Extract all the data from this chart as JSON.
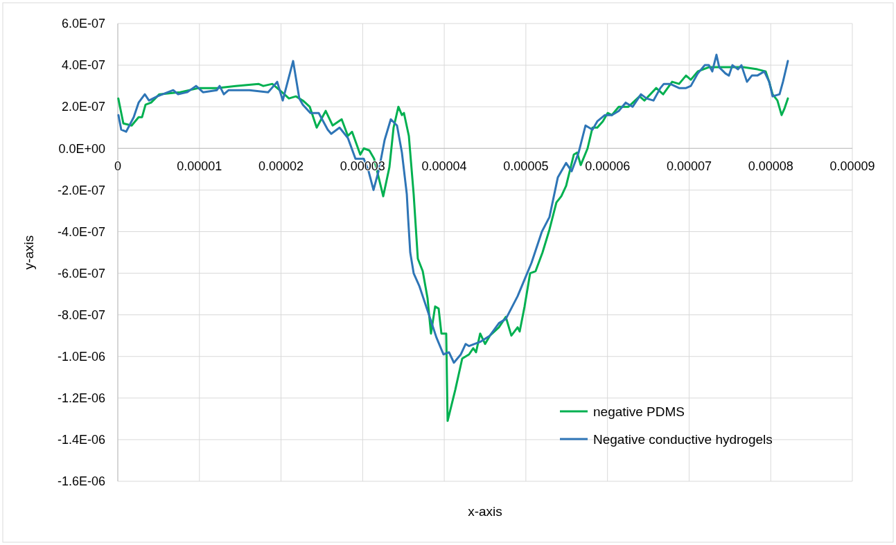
{
  "chart_data": {
    "type": "line",
    "xlabel": "x-axis",
    "ylabel": "y-axis",
    "xlim": [
      0,
      9e-05
    ],
    "ylim": [
      -1.6e-06,
      6e-07
    ],
    "xticks": [
      {
        "value": 0,
        "label": "0"
      },
      {
        "value": 1e-05,
        "label": "0.00001"
      },
      {
        "value": 2e-05,
        "label": "0.00002"
      },
      {
        "value": 3e-05,
        "label": "0.00003"
      },
      {
        "value": 4e-05,
        "label": "0.00004"
      },
      {
        "value": 5e-05,
        "label": "0.00005"
      },
      {
        "value": 6e-05,
        "label": "0.00006"
      },
      {
        "value": 7e-05,
        "label": "0.00007"
      },
      {
        "value": 8e-05,
        "label": "0.00008"
      },
      {
        "value": 9e-05,
        "label": "0.00009"
      }
    ],
    "yticks": [
      {
        "value": 6e-07,
        "label": "6.0E-07"
      },
      {
        "value": 4e-07,
        "label": "4.0E-07"
      },
      {
        "value": 2e-07,
        "label": "2.0E-07"
      },
      {
        "value": 0,
        "label": "0.0E+00"
      },
      {
        "value": -2e-07,
        "label": "-2.0E-07"
      },
      {
        "value": -4e-07,
        "label": "-4.0E-07"
      },
      {
        "value": -6e-07,
        "label": "-6.0E-07"
      },
      {
        "value": -8e-07,
        "label": "-8.0E-07"
      },
      {
        "value": -1e-06,
        "label": "-1.0E-06"
      },
      {
        "value": -1.2e-06,
        "label": "-1.2E-06"
      },
      {
        "value": -1.4e-06,
        "label": "-1.4E-06"
      },
      {
        "value": -1.6e-06,
        "label": "-1.6E-06"
      }
    ],
    "grid": true,
    "legend": "bottom right",
    "marker": "none",
    "line_style": "solid",
    "series": [
      {
        "name": "negative PDMS",
        "color": "#00b050",
        "x": [
          6e-08,
          6.8e-07,
          1.7e-06,
          2.55e-06,
          2.97e-06,
          3.4e-06,
          4.08e-06,
          5.09e-06,
          7.64e-06,
          9.93e-06,
          1.214e-05,
          1.443e-05,
          1.723e-05,
          1.783e-05,
          1.893e-05,
          2.012e-05,
          2.097e-05,
          2.182e-05,
          2.267e-05,
          2.352e-05,
          2.437e-05,
          2.547e-05,
          2.632e-05,
          2.743e-05,
          2.819e-05,
          2.87e-05,
          2.971e-05,
          3.014e-05,
          3.082e-05,
          3.141e-05,
          3.252e-05,
          3.328e-05,
          3.379e-05,
          3.438e-05,
          3.481e-05,
          3.506e-05,
          3.566e-05,
          3.625e-05,
          3.676e-05,
          3.736e-05,
          3.795e-05,
          3.837e-05,
          3.888e-05,
          3.931e-05,
          3.965e-05,
          4.024e-05,
          4.041e-05,
          4.135e-05,
          4.22e-05,
          4.304e-05,
          4.355e-05,
          4.389e-05,
          4.44e-05,
          4.5e-05,
          4.559e-05,
          4.67e-05,
          4.754e-05,
          4.822e-05,
          4.899e-05,
          4.924e-05,
          4.984e-05,
          5.052e-05,
          5.119e-05,
          5.204e-05,
          5.289e-05,
          5.374e-05,
          5.434e-05,
          5.493e-05,
          5.587e-05,
          5.629e-05,
          5.672e-05,
          5.756e-05,
          5.816e-05,
          5.875e-05,
          5.943e-05,
          6.002e-05,
          6.053e-05,
          6.138e-05,
          6.257e-05,
          6.393e-05,
          6.452e-05,
          6.597e-05,
          6.682e-05,
          6.792e-05,
          6.877e-05,
          6.962e-05,
          7.021e-05,
          7.106e-05,
          7.242e-05,
          7.386e-05,
          7.666e-05,
          7.836e-05,
          7.938e-05,
          7.981e-05,
          8.023e-05,
          8.082e-05,
          8.133e-05,
          8.167e-05,
          8.21e-05
        ],
        "values": [
          2.4e-07,
          1.2e-07,
          1.1e-07,
          1.5e-07,
          1.5e-07,
          2.1e-07,
          2.2e-07,
          2.6e-07,
          2.7e-07,
          2.9e-07,
          2.9e-07,
          3e-07,
          3.1e-07,
          3e-07,
          3.1e-07,
          2.7e-07,
          2.4e-07,
          2.5e-07,
          2.3e-07,
          2e-07,
          1e-07,
          1.8e-07,
          1.1e-07,
          1.4e-07,
          6e-08,
          8e-08,
          -3e-08,
          0,
          -1e-08,
          -5e-08,
          -2.3e-07,
          -9e-08,
          1e-07,
          2e-07,
          1.6e-07,
          1.7e-07,
          6e-08,
          -2.2e-07,
          -5.3e-07,
          -5.9e-07,
          -7.2e-07,
          -8.9e-07,
          -7.6e-07,
          -7.7e-07,
          -8.9e-07,
          -8.9e-07,
          -1.31e-06,
          -1.16e-06,
          -1.01e-06,
          -9.9e-07,
          -9.6e-07,
          -9.8e-07,
          -8.9e-07,
          -9.4e-07,
          -9e-07,
          -8.6e-07,
          -8.1e-07,
          -9e-07,
          -8.6e-07,
          -8.8e-07,
          -7.6e-07,
          -6e-07,
          -5.9e-07,
          -5e-07,
          -3.9e-07,
          -2.6e-07,
          -2.3e-07,
          -1.8e-07,
          -3e-08,
          -2e-08,
          -8e-08,
          0,
          1e-07,
          1e-07,
          1.3e-07,
          1.7e-07,
          1.6e-07,
          2e-07,
          2e-07,
          2.5e-07,
          2.3e-07,
          2.9e-07,
          2.6e-07,
          3.2e-07,
          3.1e-07,
          3.5e-07,
          3.3e-07,
          3.7e-07,
          3.9e-07,
          3.9e-07,
          3.9e-07,
          3.8e-07,
          3.7e-07,
          3.2e-07,
          2.6e-07,
          2.3e-07,
          1.6e-07,
          1.9e-07,
          2.4e-07
        ]
      },
      {
        "name": "Negative conductive hydrogels",
        "color": "#2e75b6",
        "x": [
          8e-08,
          4.2e-07,
          1.02e-06,
          1.95e-06,
          2.55e-06,
          3.31e-06,
          3.82e-06,
          4.84e-06,
          6.79e-06,
          7.39e-06,
          8.49e-06,
          9.59e-06,
          1.044e-05,
          1.214e-05,
          1.248e-05,
          1.299e-05,
          1.358e-05,
          1.613e-05,
          1.842e-05,
          1.953e-05,
          2.021e-05,
          2.148e-05,
          2.224e-05,
          2.267e-05,
          2.36e-05,
          2.462e-05,
          2.572e-05,
          2.615e-05,
          2.717e-05,
          2.819e-05,
          2.912e-05,
          3.014e-05,
          3.073e-05,
          3.133e-05,
          3.201e-05,
          3.269e-05,
          3.345e-05,
          3.421e-05,
          3.481e-05,
          3.541e-05,
          3.558e-05,
          3.583e-05,
          3.625e-05,
          3.693e-05,
          3.821e-05,
          3.905e-05,
          3.99e-05,
          4.058e-05,
          4.118e-05,
          4.203e-05,
          4.262e-05,
          4.304e-05,
          4.44e-05,
          4.559e-05,
          4.67e-05,
          4.754e-05,
          4.899e-05,
          5.069e-05,
          5.196e-05,
          5.289e-05,
          5.391e-05,
          5.493e-05,
          5.561e-05,
          5.646e-05,
          5.731e-05,
          5.816e-05,
          5.875e-05,
          5.968e-05,
          6.053e-05,
          6.138e-05,
          6.223e-05,
          6.308e-05,
          6.41e-05,
          6.478e-05,
          6.563e-05,
          6.648e-05,
          6.69e-05,
          6.767e-05,
          6.877e-05,
          6.962e-05,
          7.021e-05,
          7.106e-05,
          7.191e-05,
          7.242e-05,
          7.284e-05,
          7.335e-05,
          7.369e-05,
          7.446e-05,
          7.488e-05,
          7.531e-05,
          7.599e-05,
          7.641e-05,
          7.666e-05,
          7.709e-05,
          7.769e-05,
          7.836e-05,
          7.921e-05,
          7.981e-05,
          8.023e-05,
          8.108e-05,
          8.15e-05,
          8.21e-05
        ],
        "values": [
          1.6e-07,
          9e-08,
          8e-08,
          1.5e-07,
          2.2e-07,
          2.6e-07,
          2.3e-07,
          2.5e-07,
          2.8e-07,
          2.6e-07,
          2.7e-07,
          3e-07,
          2.7e-07,
          2.8e-07,
          3e-07,
          2.6e-07,
          2.8e-07,
          2.8e-07,
          2.7e-07,
          3.2e-07,
          2.3e-07,
          4.2e-07,
          2.4e-07,
          2.1e-07,
          1.7e-07,
          1.7e-07,
          9e-08,
          7e-08,
          1e-07,
          5e-08,
          -5e-08,
          -5e-08,
          -1.1e-07,
          -2e-07,
          -1e-07,
          4e-08,
          1.4e-07,
          1.1e-07,
          -2e-08,
          -2.2e-07,
          -3.4e-07,
          -5e-07,
          -6e-07,
          -6.6e-07,
          -8.1e-07,
          -9.1e-07,
          -9.9e-07,
          -9.8e-07,
          -1.03e-06,
          -9.9e-07,
          -9.4e-07,
          -9.5e-07,
          -9.3e-07,
          -9e-07,
          -8.4e-07,
          -8.2e-07,
          -7.1e-07,
          -5.5e-07,
          -4e-07,
          -3.3e-07,
          -1.4e-07,
          -7e-08,
          -1.1e-07,
          -2e-08,
          1.1e-07,
          9e-08,
          1.3e-07,
          1.6e-07,
          1.6e-07,
          1.8e-07,
          2.2e-07,
          2e-07,
          2.6e-07,
          2.4e-07,
          2.3e-07,
          2.9e-07,
          3.1e-07,
          3.1e-07,
          2.9e-07,
          2.9e-07,
          3e-07,
          3.6e-07,
          4e-07,
          4e-07,
          3.7e-07,
          4.5e-07,
          3.9e-07,
          3.6e-07,
          3.5e-07,
          4e-07,
          3.8e-07,
          4e-07,
          3.7e-07,
          3.2e-07,
          3.5e-07,
          3.5e-07,
          3.7e-07,
          3.2e-07,
          2.5e-07,
          2.6e-07,
          3.2e-07,
          4.2e-07
        ]
      }
    ]
  }
}
